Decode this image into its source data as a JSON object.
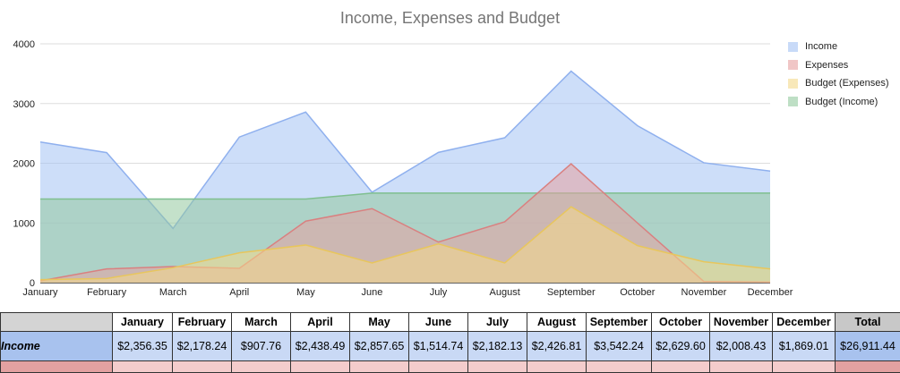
{
  "chart_data": {
    "type": "area",
    "title": "Income, Expenses and Budget",
    "categories": [
      "January",
      "February",
      "March",
      "April",
      "May",
      "June",
      "July",
      "August",
      "September",
      "October",
      "November",
      "December"
    ],
    "ylim": [
      0,
      4000
    ],
    "yticks": [
      0,
      1000,
      2000,
      3000,
      4000
    ],
    "grid": true,
    "legend_position": "right",
    "series": [
      {
        "name": "Income",
        "color": "#a4c2f4",
        "line": "#8fb0ee",
        "values": [
          2356.35,
          2178.24,
          907.76,
          2438.49,
          2857.65,
          1514.74,
          2182.13,
          2426.81,
          3542.24,
          2629.6,
          2008.43,
          1869.01
        ]
      },
      {
        "name": "Expenses",
        "color": "#e6a0a0",
        "line": "#d98080",
        "values": [
          30,
          230,
          270,
          240,
          1030,
          1240,
          680,
          1020,
          1990,
          1000,
          20,
          10
        ]
      },
      {
        "name": "Budget (Expenses)",
        "color": "#f4d98a",
        "line": "#e8c65c",
        "values": [
          50,
          70,
          250,
          500,
          630,
          330,
          650,
          330,
          1270,
          620,
          350,
          230
        ]
      },
      {
        "name": "Budget (Income)",
        "color": "#93c99f",
        "line": "#7fbf8f",
        "values": [
          1400,
          1400,
          1400,
          1400,
          1400,
          1500,
          1500,
          1500,
          1500,
          1500,
          1500,
          1500
        ]
      }
    ]
  },
  "table": {
    "headers": [
      "January",
      "February",
      "March",
      "April",
      "May",
      "June",
      "July",
      "August",
      "September",
      "October",
      "November",
      "December",
      "Total"
    ],
    "income_label": "Income",
    "income": [
      "$2,356.35",
      "$2,178.24",
      "$907.76",
      "$2,438.49",
      "$2,857.65",
      "$1,514.74",
      "$2,182.13",
      "$2,426.81",
      "$3,542.24",
      "$2,629.60",
      "$2,008.43",
      "$1,869.01",
      "$26,911.44"
    ]
  }
}
